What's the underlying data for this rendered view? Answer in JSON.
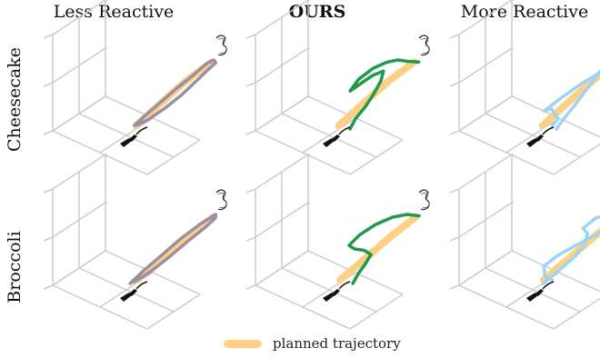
{
  "columns": [
    "Less Reactive",
    "OURS",
    "More Reactive"
  ],
  "rows": [
    "Cheesecake",
    "Broccoli"
  ],
  "legend": {
    "planned_label": "planned trajectory"
  },
  "colors": {
    "planned": "#fdd086",
    "less_reactive": "#9b8fa3",
    "ours": "#1f9a4a",
    "more_reactive": "#9fd3f5",
    "grid": "#cccccc",
    "tool": "#111111"
  },
  "chart_data": {
    "type": "line",
    "title": "",
    "grid": true,
    "legend_position": "bottom-center",
    "series": [
      {
        "name": "planned trajectory",
        "color": "#fdd086",
        "panels": [
          {
            "row": "Cheesecake",
            "x": [
              0.08,
              0.35,
              0.62,
              0.92
            ],
            "y": [
              0.05,
              0.38,
              0.7,
              0.97
            ]
          },
          {
            "row": "Broccoli",
            "x": [
              0.1,
              0.38,
              0.66,
              0.95
            ],
            "y": [
              0.05,
              0.36,
              0.68,
              0.96
            ]
          }
        ]
      },
      {
        "column": "Less Reactive",
        "color": "#9b8fa3",
        "panels": [
          {
            "row": "Cheesecake",
            "x": [
              0.05,
              0.15,
              0.3,
              0.5,
              0.7,
              0.85,
              0.95,
              1.0,
              0.92,
              0.8,
              0.65,
              0.45,
              0.25,
              0.1
            ],
            "y": [
              0.05,
              0.18,
              0.35,
              0.58,
              0.78,
              0.95,
              1.0,
              0.96,
              0.86,
              0.7,
              0.5,
              0.3,
              0.14,
              0.06
            ]
          },
          {
            "row": "Broccoli",
            "x": [
              0.0,
              0.15,
              0.35,
              0.55,
              0.78,
              0.98,
              1.0,
              0.9,
              0.7,
              0.5,
              0.3,
              0.12,
              0.04
            ],
            "y": [
              0.0,
              0.2,
              0.42,
              0.65,
              0.86,
              1.0,
              0.95,
              0.82,
              0.62,
              0.4,
              0.2,
              0.06,
              0.02
            ]
          }
        ]
      },
      {
        "column": "OURS",
        "color": "#1f9a4a",
        "panels": [
          {
            "row": "Cheesecake",
            "x": [
              0.3,
              0.32,
              0.4,
              0.45,
              0.48,
              0.45,
              0.3,
              0.15,
              0.02,
              0.08,
              0.25,
              0.45,
              0.62,
              0.8,
              1.0
            ],
            "y": [
              0.0,
              0.15,
              0.32,
              0.5,
              0.7,
              0.84,
              0.78,
              0.66,
              0.55,
              0.72,
              0.88,
              0.97,
              1.0,
              0.98,
              0.97
            ]
          },
          {
            "row": "Broccoli",
            "x": [
              0.35,
              0.37,
              0.42,
              0.45,
              0.3,
              0.12,
              0.0,
              0.1,
              0.3,
              0.55,
              0.78,
              1.0
            ],
            "y": [
              0.0,
              0.14,
              0.28,
              0.42,
              0.48,
              0.5,
              0.55,
              0.7,
              0.85,
              0.96,
              1.0,
              0.98
            ]
          }
        ]
      },
      {
        "column": "More Reactive",
        "color": "#9fd3f5",
        "panels": [
          {
            "row": "Cheesecake",
            "x": [
              0.35,
              0.4,
              0.48,
              0.55,
              0.62,
              0.68,
              0.75,
              0.85,
              0.95,
              1.0,
              0.75,
              0.45,
              0.2,
              0.0,
              0.1,
              0.3,
              0.25
            ],
            "y": [
              0.0,
              0.15,
              0.32,
              0.5,
              0.68,
              0.84,
              0.95,
              1.0,
              0.98,
              0.94,
              0.86,
              0.66,
              0.45,
              0.26,
              0.3,
              0.15,
              0.05
            ]
          },
          {
            "row": "Broccoli",
            "x": [
              0.12,
              0.25,
              0.45,
              0.55,
              0.52,
              0.4,
              0.55,
              0.75,
              0.95,
              1.0,
              0.7,
              0.4,
              0.15,
              0.0,
              0.1,
              0.25
            ],
            "y": [
              0.0,
              0.14,
              0.36,
              0.55,
              0.72,
              0.8,
              0.95,
              1.0,
              0.98,
              0.92,
              0.72,
              0.55,
              0.4,
              0.25,
              0.1,
              0.05
            ]
          }
        ]
      }
    ]
  }
}
